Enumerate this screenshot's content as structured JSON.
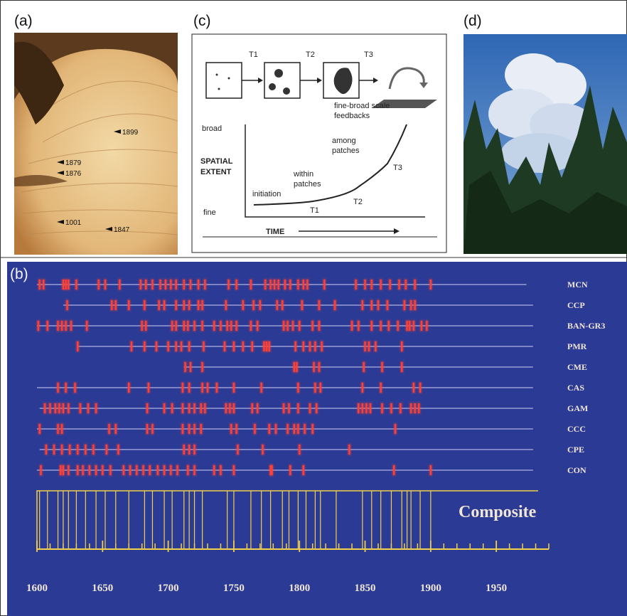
{
  "panels": {
    "a": {
      "label": "(a)",
      "annotations": [
        "1899",
        "1879",
        "1876",
        "1001",
        "1847"
      ]
    },
    "c": {
      "label": "(c)",
      "stages": [
        "T1",
        "T2",
        "T3"
      ],
      "y_top": "broad",
      "y_label": [
        "SPATIAL",
        "EXTENT"
      ],
      "y_bottom": "fine",
      "phases": [
        "initiation",
        "within patches",
        "among patches",
        "fine-broad scale feedbacks"
      ],
      "curve_marks": [
        "T1",
        "T2",
        "T3"
      ],
      "x_label": "TIME"
    },
    "d": {
      "label": "(d)"
    }
  },
  "chart_data": {
    "type": "fire-scar",
    "label": "(b)",
    "color": "#ff4034",
    "line_color": "#9a9ed4",
    "composite_color": "#f2d04a",
    "xlim": [
      1600,
      1990
    ],
    "xticks": [
      1600,
      1650,
      1700,
      1750,
      1800,
      1850,
      1900,
      1950
    ],
    "xminor": [
      1610,
      1620,
      1630,
      1640,
      1660,
      1670,
      1680,
      1690,
      1710,
      1720,
      1730,
      1740,
      1760,
      1770,
      1780,
      1790,
      1810,
      1820,
      1830,
      1840,
      1860,
      1870,
      1880,
      1890,
      1910,
      1920,
      1930,
      1940,
      1960,
      1970,
      1980,
      1990
    ],
    "series": [
      {
        "name": "MCN",
        "start": 1600,
        "end": 1973,
        "values": [
          1602,
          1605,
          1620,
          1622,
          1624,
          1630,
          1647,
          1652,
          1663,
          1679,
          1683,
          1688,
          1694,
          1698,
          1702,
          1706,
          1712,
          1717,
          1723,
          1728,
          1746,
          1752,
          1763,
          1774,
          1778,
          1781,
          1784,
          1789,
          1793,
          1799,
          1803,
          1806,
          1819,
          1843,
          1850,
          1855,
          1862,
          1869,
          1876,
          1881,
          1888,
          1900
        ]
      },
      {
        "name": "CCP",
        "start": 1620,
        "end": 1978,
        "values": [
          1623,
          1657,
          1660,
          1670,
          1682,
          1693,
          1697,
          1706,
          1712,
          1716,
          1723,
          1726,
          1744,
          1757,
          1765,
          1770,
          1783,
          1787,
          1802,
          1815,
          1827,
          1848,
          1855,
          1860,
          1867,
          1880,
          1885,
          1888
        ]
      },
      {
        "name": "BAN-GR3",
        "start": 1600,
        "end": 1978,
        "values": [
          1601,
          1608,
          1616,
          1619,
          1622,
          1626,
          1638,
          1680,
          1683,
          1703,
          1706,
          1712,
          1715,
          1720,
          1726,
          1735,
          1740,
          1745,
          1748,
          1752,
          1763,
          1768,
          1788,
          1791,
          1795,
          1800,
          1810,
          1815,
          1840,
          1845,
          1855,
          1862,
          1868,
          1875,
          1882,
          1884,
          1887,
          1893,
          1897
        ]
      },
      {
        "name": "PMR",
        "start": 1631,
        "end": 1978,
        "values": [
          1631,
          1672,
          1682,
          1691,
          1700,
          1706,
          1710,
          1716,
          1727,
          1743,
          1750,
          1757,
          1764,
          1773,
          1775,
          1777,
          1797,
          1803,
          1808,
          1812,
          1817,
          1850,
          1853,
          1858,
          1878
        ]
      },
      {
        "name": "CME",
        "start": 1712,
        "end": 1978,
        "values": [
          1713,
          1717,
          1726,
          1796,
          1798,
          1811,
          1815,
          1849,
          1863,
          1878
        ]
      },
      {
        "name": "CAS",
        "start": 1600,
        "end": 1978,
        "values": [
          1616,
          1622,
          1629,
          1670,
          1685,
          1711,
          1716,
          1726,
          1730,
          1737,
          1750,
          1771,
          1799,
          1812,
          1816,
          1848,
          1862,
          1887,
          1892
        ]
      },
      {
        "name": "GAM",
        "start": 1602,
        "end": 1978,
        "values": [
          1606,
          1610,
          1614,
          1617,
          1620,
          1624,
          1633,
          1639,
          1645,
          1684,
          1697,
          1703,
          1711,
          1716,
          1720,
          1725,
          1728,
          1744,
          1747,
          1750,
          1764,
          1768,
          1788,
          1792,
          1799,
          1808,
          1813,
          1845,
          1848,
          1851,
          1854,
          1863,
          1870,
          1877,
          1885,
          1888,
          1891
        ]
      },
      {
        "name": "CCC",
        "start": 1600,
        "end": 1978,
        "values": [
          1602,
          1616,
          1619,
          1655,
          1660,
          1684,
          1688,
          1711,
          1716,
          1720,
          1725,
          1748,
          1752,
          1766,
          1777,
          1782,
          1791,
          1796,
          1799,
          1804,
          1810,
          1873
        ]
      },
      {
        "name": "CPE",
        "start": 1602,
        "end": 1978,
        "values": [
          1607,
          1613,
          1619,
          1625,
          1631,
          1637,
          1643,
          1653,
          1662,
          1712,
          1716,
          1720,
          1753,
          1772,
          1800,
          1838
        ]
      },
      {
        "name": "CON",
        "start": 1600,
        "end": 1978,
        "values": [
          1603,
          1618,
          1620,
          1624,
          1631,
          1635,
          1640,
          1645,
          1650,
          1656,
          1666,
          1671,
          1676,
          1681,
          1686,
          1692,
          1697,
          1702,
          1707,
          1715,
          1720,
          1735,
          1740,
          1750,
          1778,
          1779,
          1793,
          1803,
          1872,
          1900
        ]
      }
    ],
    "composite": {
      "name": "Composite",
      "values": [
        1602,
        1608,
        1616,
        1620,
        1624,
        1630,
        1637,
        1645,
        1652,
        1660,
        1670,
        1682,
        1688,
        1697,
        1703,
        1712,
        1716,
        1720,
        1726,
        1745,
        1750,
        1763,
        1771,
        1778,
        1787,
        1792,
        1799,
        1805,
        1812,
        1816,
        1828,
        1848,
        1855,
        1862,
        1870,
        1878,
        1882,
        1885,
        1892,
        1900
      ]
    }
  }
}
